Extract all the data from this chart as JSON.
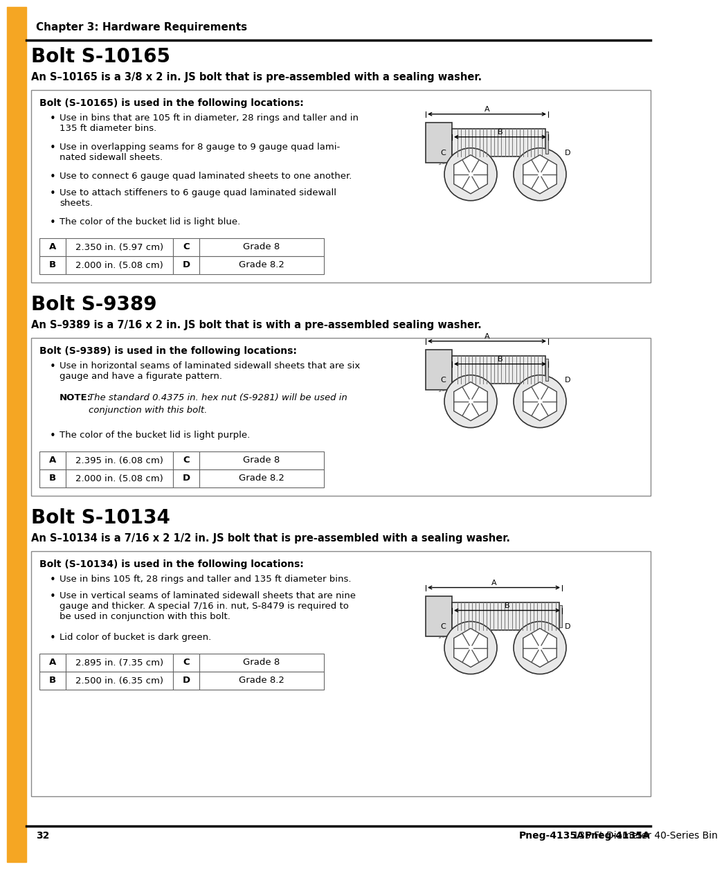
{
  "page_bg": "#ffffff",
  "accent_color": "#F5A623",
  "chapter_title": "Chapter 3: Hardware Requirements",
  "footer_page": "32",
  "footer_right_bold": "Pneg-4135A",
  "footer_right_normal": " 135 Ft Diameter 40-Series Bin",
  "sections": [
    {
      "title": "Bolt S-10165",
      "subtitle": "An S–10165 is a 3/8 x 2 in. JS bolt that is pre-assembled with a sealing washer.",
      "box_header": "Bolt (S-10165) is used in the following locations:",
      "bullets": [
        "Use in bins that are 105 ft in diameter, 28 rings and taller and in\n135 ft diameter bins.",
        "Use in overlapping seams for 8 gauge to 9 gauge quad lami-\nnated sidewall sheets.",
        "Use to connect 6 gauge quad laminated sheets to one another.",
        "Use to attach stiffeners to 6 gauge quad laminated sidewall\nsheets.",
        "The color of the bucket lid is light blue."
      ],
      "note": null,
      "table": [
        [
          "A",
          "2.350 in. (5.97 cm)",
          "C",
          "Grade 8"
        ],
        [
          "B",
          "2.000 in. (5.08 cm)",
          "D",
          "Grade 8.2"
        ]
      ]
    },
    {
      "title": "Bolt S-9389",
      "subtitle": "An S–9389 is a 7/16 x 2 in. JS bolt that is with a pre-assembled sealing washer.",
      "box_header": "Bolt (S-9389) is used in the following locations:",
      "bullets": [
        "Use in horizontal seams of laminated sidewall sheets that are six\ngauge and have a figurate pattern."
      ],
      "note": "NOTE: The standard 0.4375 in. hex nut (S-9281) will be used in\nconjunction with this bolt.",
      "bullet_after_note": "The color of the bucket lid is light purple.",
      "table": [
        [
          "A",
          "2.395 in. (6.08 cm)",
          "C",
          "Grade 8"
        ],
        [
          "B",
          "2.000 in. (5.08 cm)",
          "D",
          "Grade 8.2"
        ]
      ]
    },
    {
      "title": "Bolt S-10134",
      "subtitle": "An S–10134 is a 7/16 x 2 1/2 in. JS bolt that is pre-assembled with a sealing washer.",
      "box_header": "Bolt (S-10134) is used in the following locations:",
      "bullets": [
        "Use in bins 105 ft, 28 rings and taller and 135 ft diameter bins.",
        "Use in vertical seams of laminated sidewall sheets that are nine\ngauge and thicker. A special 7/16 in. nut, S-8479 is required to\nbe used in conjunction with this bolt.",
        "Lid color of bucket is dark green."
      ],
      "note": null,
      "table": [
        [
          "A",
          "2.895 in. (7.35 cm)",
          "C",
          "Grade 8"
        ],
        [
          "B",
          "2.500 in. (6.35 cm)",
          "D",
          "Grade 8.2"
        ]
      ]
    }
  ]
}
